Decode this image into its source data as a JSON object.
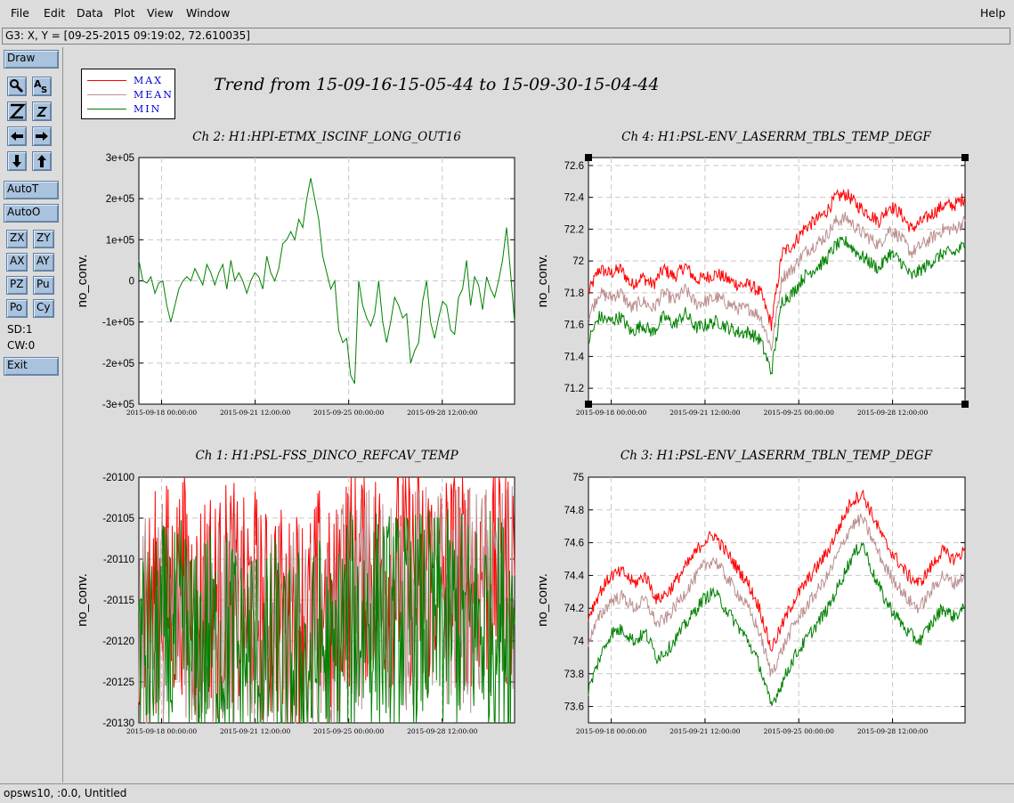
{
  "menu": {
    "file": "File",
    "edit": "Edit",
    "data": "Data",
    "plot": "Plot",
    "view": "View",
    "window": "Window",
    "help": "Help"
  },
  "coord_readout": "G3: X, Y = [09-25-2015 09:19:02, 72.610035]",
  "toolbar": {
    "draw": "Draw",
    "icons": [
      "magnify-icon",
      "text-tool-icon",
      "zoom-big-icon",
      "zoom-small-icon",
      "arrow-left-icon",
      "arrow-right-icon",
      "arrow-down-icon",
      "arrow-up-icon"
    ],
    "autot": "AutoT",
    "autoo": "AutoO",
    "zx": "ZX",
    "zy": "ZY",
    "ax": "AX",
    "ay": "AY",
    "pz": "PZ",
    "pu": "Pu",
    "po": "Po",
    "cy": "Cy",
    "sd": "SD:1",
    "cw": "CW:0",
    "exit": "Exit"
  },
  "legend": {
    "max": "MAX",
    "mean": "MEAN",
    "min": "MIN",
    "max_color": "#ff0000",
    "mean_color": "#bc8f8f",
    "min_color": "#008000"
  },
  "trend_title": "Trend from 15-09-16-15-05-44 to 15-09-30-15-04-44",
  "status": "opsws10, :0.0, Untitled",
  "chart_data": [
    {
      "type": "line",
      "title": "Ch 2: H1:HPI-ETMX_ISCINF_LONG_OUT16",
      "ylabel": "no_conv.",
      "ylim": [
        -300000,
        300000
      ],
      "yticks": [
        "3e+05",
        "2e+05",
        "1e+05",
        "0",
        "-1e+05",
        "-2e+05",
        "-3e+05"
      ],
      "xticks": [
        "2015-09-18 00:00:00",
        "2015-09-21 12:00:00",
        "2015-09-25 00:00:00",
        "2015-09-28 12:00:00"
      ],
      "series": [
        {
          "color": "#008000",
          "values": [
            50000,
            0,
            -5000,
            10000,
            -30000,
            -5000,
            0,
            -60000,
            -100000,
            -60000,
            -20000,
            0,
            10000,
            0,
            30000,
            10000,
            -10000,
            40000,
            20000,
            -10000,
            20000,
            40000,
            -20000,
            50000,
            0,
            20000,
            0,
            -30000,
            0,
            20000,
            10000,
            -20000,
            60000,
            20000,
            0,
            30000,
            90000,
            100000,
            120000,
            100000,
            150000,
            130000,
            200000,
            250000,
            200000,
            150000,
            60000,
            20000,
            -20000,
            0,
            -120000,
            -150000,
            -140000,
            -230000,
            -250000,
            0,
            -60000,
            -90000,
            -110000,
            -80000,
            0,
            -100000,
            -150000,
            -100000,
            -40000,
            -60000,
            -90000,
            -80000,
            -200000,
            -170000,
            -150000,
            -50000,
            0,
            -100000,
            -140000,
            -90000,
            -50000,
            -60000,
            -120000,
            -130000,
            -40000,
            -20000,
            50000,
            -60000,
            10000,
            -10000,
            -70000,
            10000,
            -20000,
            -40000,
            0,
            50000,
            130000,
            20000,
            -100000
          ]
        }
      ]
    },
    {
      "type": "line",
      "title": "Ch 4: H1:PSL-ENV_LASERRM_TBLS_TEMP_DEGF",
      "ylabel": "no_conv.",
      "ylim": [
        71.1,
        72.65
      ],
      "yticks": [
        "72.6",
        "72.4",
        "72.2",
        "72",
        "71.8",
        "71.6",
        "71.4",
        "71.2"
      ],
      "xticks": [
        "2015-09-18 00:00:00",
        "2015-09-21 12:00:00",
        "2015-09-25 00:00:00",
        "2015-09-28 12:00:00"
      ],
      "series": [
        {
          "name": "MAX",
          "color": "#ff0000",
          "values": [
            71.8,
            71.95,
            71.92,
            71.95,
            71.85,
            71.9,
            71.85,
            71.95,
            71.9,
            71.97,
            71.88,
            71.9,
            71.92,
            71.88,
            71.85,
            71.85,
            71.8,
            71.6,
            72.05,
            72.1,
            72.2,
            72.25,
            72.3,
            72.4,
            72.42,
            72.35,
            72.3,
            72.25,
            72.35,
            72.3,
            72.2,
            72.25,
            72.3,
            72.35,
            72.35,
            72.4
          ]
        },
        {
          "name": "MEAN",
          "color": "#bc8f8f",
          "values": [
            71.65,
            71.8,
            71.77,
            71.8,
            71.7,
            71.75,
            71.7,
            71.8,
            71.75,
            71.82,
            71.73,
            71.75,
            71.77,
            71.73,
            71.7,
            71.7,
            71.65,
            71.45,
            71.9,
            71.95,
            72.05,
            72.1,
            72.15,
            72.25,
            72.27,
            72.2,
            72.15,
            72.1,
            72.2,
            72.15,
            72.05,
            72.1,
            72.15,
            72.2,
            72.2,
            72.25
          ]
        },
        {
          "name": "MIN",
          "color": "#008000",
          "values": [
            71.5,
            71.65,
            71.62,
            71.65,
            71.55,
            71.6,
            71.55,
            71.65,
            71.6,
            71.67,
            71.58,
            71.6,
            71.62,
            71.58,
            71.55,
            71.55,
            71.5,
            71.3,
            71.75,
            71.8,
            71.9,
            71.95,
            72.0,
            72.1,
            72.12,
            72.05,
            72.0,
            71.95,
            72.05,
            72.0,
            71.9,
            71.95,
            72.0,
            72.05,
            72.05,
            72.1
          ]
        }
      ]
    },
    {
      "type": "line",
      "title": "Ch 1: H1:PSL-FSS_DINCO_REFCAV_TEMP",
      "ylabel": "no_conv.",
      "ylim": [
        -20130,
        -20100
      ],
      "yticks": [
        "-20100",
        "-20105",
        "-20110",
        "-20115",
        "-20120",
        "-20125",
        "-20130"
      ],
      "xticks": [
        "2015-09-18 00:00:00",
        "2015-09-21 12:00:00",
        "2015-09-25 00:00:00",
        "2015-09-28 12:00:00"
      ],
      "series": [
        {
          "name": "MAX",
          "color": "#ff0000",
          "values": [
            -20114,
            -20117,
            -20113,
            -20115,
            -20112,
            -20117,
            -20113,
            -20116,
            -20113,
            -20117,
            -20114,
            -20118,
            -20115,
            -20119,
            -20116,
            -20118,
            -20114,
            -20119,
            -20112,
            -20112,
            -20111.5,
            -20111.5,
            -20112,
            -20111.5,
            -20112,
            -20111.5,
            -20112,
            -20112,
            -20111.5,
            -20112,
            -20112,
            -20111.5,
            -20112,
            -20112
          ]
        },
        {
          "name": "MEAN",
          "color": "#bc8f8f",
          "values": [
            -20117,
            -20120,
            -20116,
            -20118,
            -20115,
            -20120,
            -20116,
            -20119,
            -20116,
            -20120,
            -20117,
            -20121,
            -20118,
            -20122,
            -20119,
            -20121,
            -20117,
            -20122,
            -20115,
            -20115,
            -20114.5,
            -20114.5,
            -20115,
            -20114.5,
            -20115,
            -20114.5,
            -20115,
            -20115,
            -20114.5,
            -20115,
            -20115,
            -20114.5,
            -20115,
            -20115
          ]
        },
        {
          "name": "MIN",
          "color": "#008000",
          "values": [
            -20120,
            -20123,
            -20119,
            -20121,
            -20118,
            -20123,
            -20119,
            -20122,
            -20119,
            -20123,
            -20120,
            -20124,
            -20121,
            -20125,
            -20122,
            -20124,
            -20120,
            -20125,
            -20118,
            -20118,
            -20117.5,
            -20117.5,
            -20118,
            -20117.5,
            -20118,
            -20117.5,
            -20118,
            -20118,
            -20117.5,
            -20118,
            -20118,
            -20117.5,
            -20118,
            -20118
          ]
        }
      ]
    },
    {
      "type": "line",
      "title": "Ch 3: H1:PSL-ENV_LASERRM_TBLN_TEMP_DEGF",
      "ylabel": "no_conv.",
      "ylim": [
        73.5,
        75
      ],
      "yticks": [
        "75",
        "74.8",
        "74.6",
        "74.4",
        "74.2",
        "74",
        "73.8",
        "73.6"
      ],
      "xticks": [
        "2015-09-18 00:00:00",
        "2015-09-21 12:00:00",
        "2015-09-25 00:00:00",
        "2015-09-28 12:00:00"
      ],
      "series": [
        {
          "name": "MAX",
          "color": "#ff0000",
          "values": [
            74.15,
            74.3,
            74.4,
            74.42,
            74.35,
            74.4,
            74.25,
            74.3,
            74.4,
            74.5,
            74.6,
            74.65,
            74.55,
            74.45,
            74.35,
            74.2,
            73.95,
            74.1,
            74.25,
            74.35,
            74.45,
            74.55,
            74.7,
            74.85,
            74.9,
            74.75,
            74.6,
            74.5,
            74.4,
            74.35,
            74.45,
            74.55,
            74.5,
            74.55
          ]
        },
        {
          "name": "MEAN",
          "color": "#bc8f8f",
          "values": [
            74.0,
            74.15,
            74.25,
            74.27,
            74.2,
            74.25,
            74.1,
            74.15,
            74.25,
            74.35,
            74.45,
            74.5,
            74.4,
            74.3,
            74.2,
            74.05,
            73.8,
            73.95,
            74.1,
            74.2,
            74.3,
            74.4,
            74.55,
            74.7,
            74.75,
            74.6,
            74.45,
            74.35,
            74.25,
            74.2,
            74.3,
            74.4,
            74.35,
            74.4
          ]
        },
        {
          "name": "MIN",
          "color": "#008000",
          "values": [
            73.7,
            73.9,
            74.05,
            74.07,
            74.0,
            74.05,
            73.9,
            73.95,
            74.05,
            74.15,
            74.25,
            74.3,
            74.2,
            74.1,
            74.0,
            73.85,
            73.6,
            73.75,
            73.9,
            74.0,
            74.1,
            74.2,
            74.35,
            74.5,
            74.6,
            74.4,
            74.25,
            74.15,
            74.05,
            74.0,
            74.1,
            74.2,
            74.15,
            74.2
          ]
        }
      ]
    }
  ]
}
